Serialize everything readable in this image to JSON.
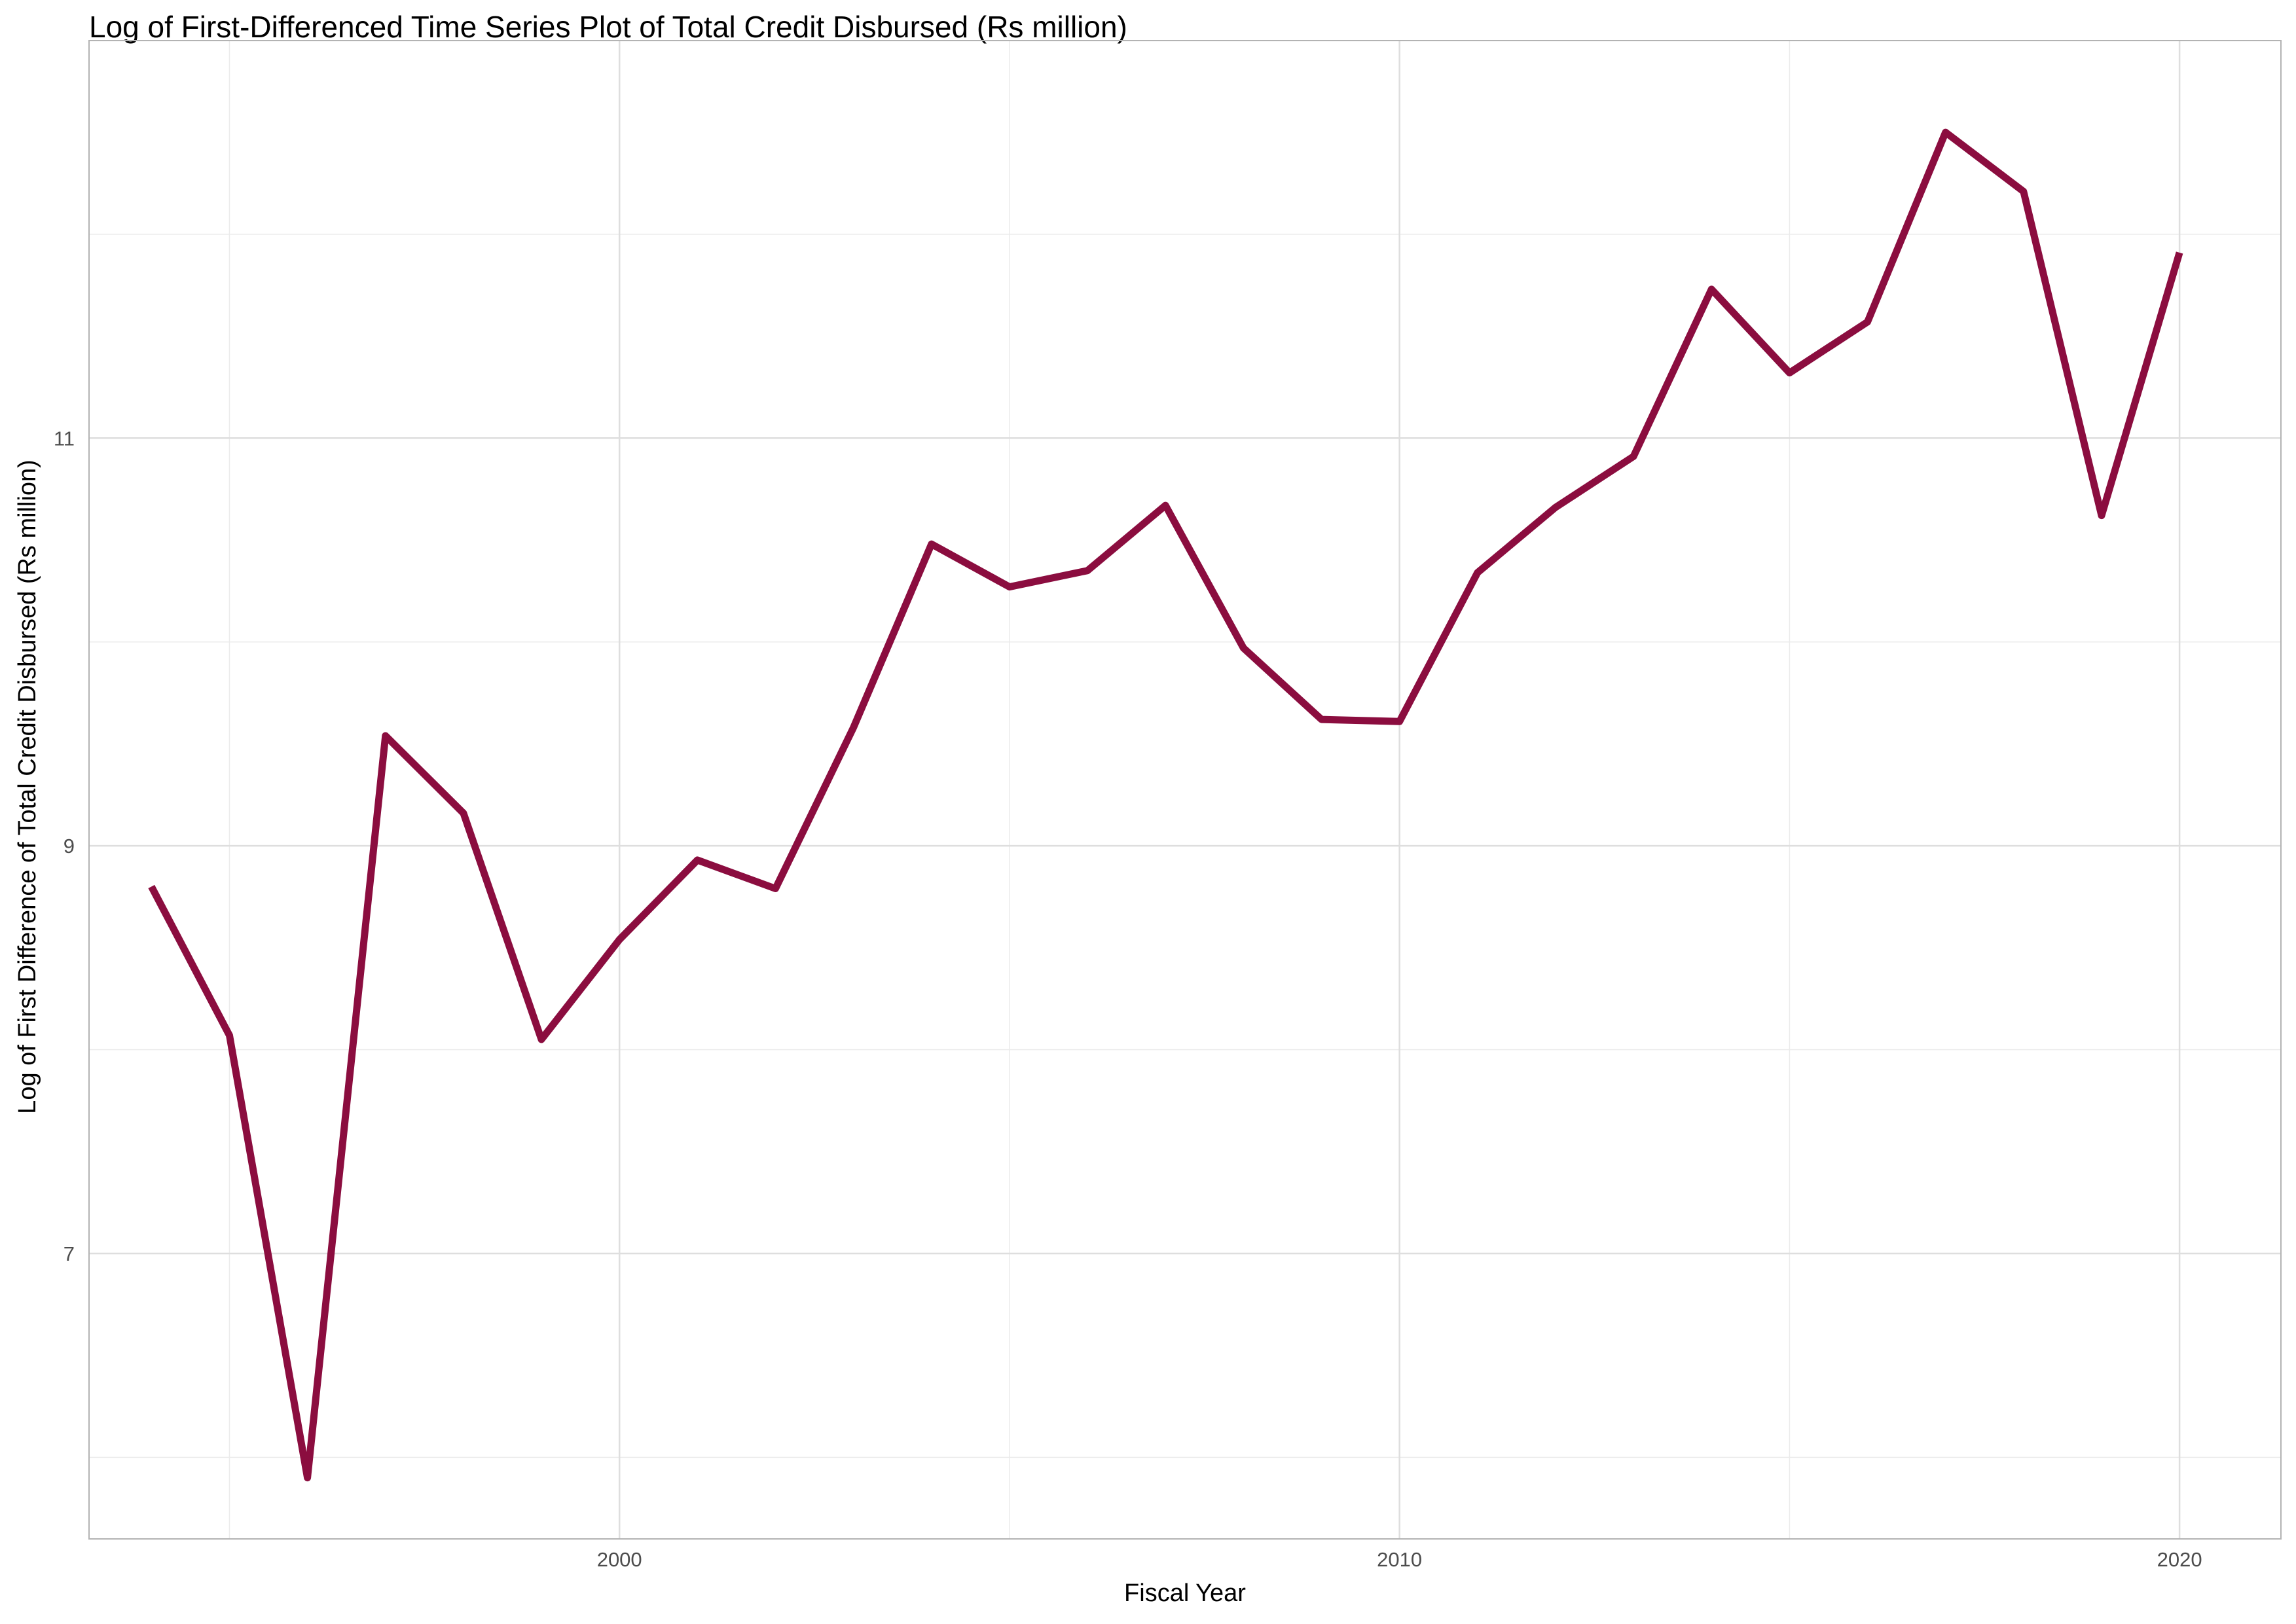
{
  "chart_data": {
    "type": "line",
    "title": "Log of First-Differenced Time Series Plot of Total Credit Disbursed (Rs million)",
    "xlabel": "Fiscal Year",
    "ylabel": "Log of First Difference of Total Credit Disbursed (Rs million)",
    "x_ticks": [
      2000,
      2010,
      2020
    ],
    "y_ticks": [
      7,
      9,
      11
    ],
    "xlim": [
      1993.2,
      2021.3
    ],
    "ylim": [
      5.6,
      12.95
    ],
    "grid": true,
    "line_color": "#8b0d3f",
    "series": [
      {
        "x": [
          1994,
          1995,
          1996,
          1997,
          1998,
          1999,
          2000,
          2001,
          2002,
          2003,
          2004,
          2005,
          2006,
          2007,
          2008,
          2009,
          2010,
          2011,
          2012,
          2013,
          2014,
          2015,
          2016,
          2017,
          2018,
          2019,
          2020
        ],
        "values": [
          8.8,
          8.07,
          5.9,
          9.54,
          9.16,
          8.05,
          8.54,
          8.93,
          8.79,
          9.58,
          10.48,
          10.27,
          10.35,
          10.67,
          9.97,
          9.62,
          9.61,
          10.34,
          10.66,
          10.91,
          11.73,
          11.32,
          11.57,
          12.5,
          12.21,
          10.62,
          11.91
        ]
      }
    ]
  }
}
